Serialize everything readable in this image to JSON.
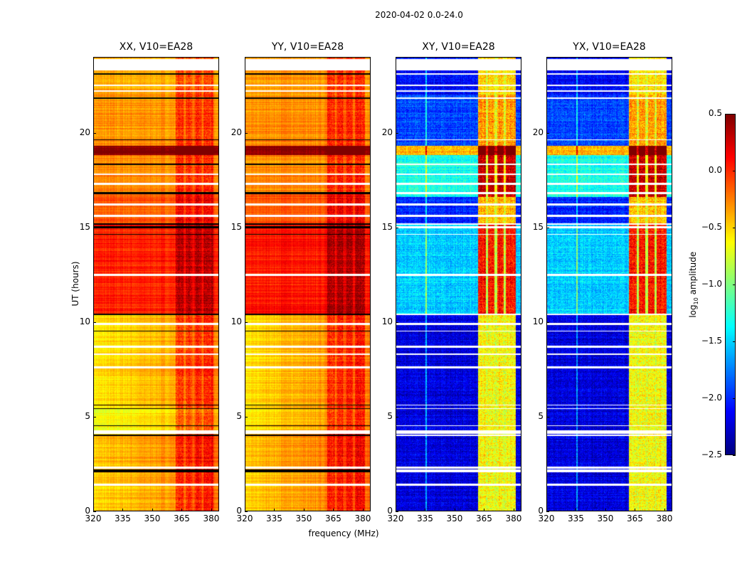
{
  "chart_data": {
    "type": "heatmap",
    "title": "2020-04-02 0.0-24.0",
    "xlabel": "frequency (MHz)",
    "ylabel": "UT (hours)",
    "xlim": [
      320,
      384
    ],
    "ylim": [
      0,
      24
    ],
    "xticks": [
      "320",
      "335",
      "350",
      "365",
      "380"
    ],
    "yticks": [
      "0",
      "5",
      "10",
      "15",
      "20"
    ],
    "colorbar": {
      "label_prefix": "log",
      "label_sub": "10",
      "label_suffix": " amplitude",
      "range": [
        -2.5,
        0.5
      ],
      "ticks": [
        "0.5",
        "0.0",
        "−0.5",
        "−1.0",
        "−1.5",
        "−2.0",
        "−2.5"
      ],
      "colormap": "jet"
    },
    "band_mhz": [
      362,
      381
    ],
    "band_gaps_mhz": [
      366.5,
      371,
      375.5
    ],
    "flagged_hours": [
      [
        23.3,
        23.9
      ],
      [
        22.45,
        22.55
      ],
      [
        22.15,
        22.25
      ],
      [
        17.75,
        17.85
      ],
      [
        17.25,
        17.35
      ],
      [
        16.15,
        16.25
      ],
      [
        15.55,
        15.65
      ],
      [
        12.45,
        12.55
      ],
      [
        9.85,
        9.95
      ],
      [
        8.65,
        8.75
      ],
      [
        8.25,
        8.35
      ],
      [
        7.55,
        7.65
      ],
      [
        4.1,
        4.3
      ],
      [
        2.25,
        2.35
      ],
      [
        1.35,
        1.45
      ]
    ],
    "black_hours": [
      [
        2.05,
        2.2
      ],
      [
        4.0,
        4.05
      ],
      [
        4.5,
        4.55
      ],
      [
        5.4,
        5.45
      ],
      [
        5.6,
        5.65
      ],
      [
        9.5,
        9.55
      ],
      [
        10.35,
        10.45
      ],
      [
        14.6,
        14.65
      ],
      [
        14.95,
        15.05
      ],
      [
        15.15,
        15.2
      ],
      [
        16.75,
        16.85
      ],
      [
        18.3,
        18.35
      ],
      [
        19.6,
        19.65
      ],
      [
        21.8,
        21.85
      ],
      [
        23.05,
        23.12
      ]
    ],
    "panels": [
      {
        "title": "XX, V10=EA28",
        "kind": "parallel",
        "band_offset": 0.3,
        "segments": [
          [
            0,
            2.1,
            -0.45
          ],
          [
            2.1,
            4.1,
            -0.4
          ],
          [
            4.1,
            5.5,
            -0.6
          ],
          [
            5.5,
            10.4,
            -0.5
          ],
          [
            10.4,
            15.2,
            -0.05
          ],
          [
            15.2,
            16.8,
            -0.2
          ],
          [
            16.8,
            18.8,
            -0.35
          ],
          [
            18.8,
            19.3,
            0.4
          ],
          [
            19.3,
            22,
            -0.4
          ],
          [
            22,
            24,
            -0.45
          ]
        ]
      },
      {
        "title": "YY, V10=EA28",
        "kind": "parallel",
        "band_offset": 0.3,
        "segments": [
          [
            0,
            2.1,
            -0.4
          ],
          [
            2.1,
            4.1,
            -0.35
          ],
          [
            4.1,
            5.5,
            -0.5
          ],
          [
            5.5,
            10.4,
            -0.45
          ],
          [
            10.4,
            15.2,
            0.0
          ],
          [
            15.2,
            16.8,
            -0.2
          ],
          [
            16.8,
            18.8,
            -0.35
          ],
          [
            18.8,
            19.3,
            0.4
          ],
          [
            19.3,
            22,
            -0.35
          ],
          [
            22,
            24,
            -0.4
          ]
        ]
      },
      {
        "title": "XY, V10=EA28",
        "kind": "cross",
        "band_offset": 1.6,
        "segments": [
          [
            0,
            10.4,
            -2.3
          ],
          [
            10.4,
            15.2,
            -1.6
          ],
          [
            15.2,
            16.6,
            -2.1
          ],
          [
            16.6,
            18.8,
            -1.4
          ],
          [
            18.8,
            19.3,
            -0.5
          ],
          [
            19.3,
            22,
            -2.0
          ],
          [
            22,
            24,
            -2.2
          ]
        ]
      },
      {
        "title": "YX, V10=EA28",
        "kind": "cross",
        "band_offset": 1.6,
        "segments": [
          [
            0,
            10.4,
            -2.3
          ],
          [
            10.4,
            15.2,
            -1.6
          ],
          [
            15.2,
            16.6,
            -2.1
          ],
          [
            16.6,
            18.8,
            -1.4
          ],
          [
            18.8,
            19.3,
            -0.5
          ],
          [
            19.3,
            22,
            -2.0
          ],
          [
            22,
            24,
            -2.2
          ]
        ]
      }
    ]
  }
}
